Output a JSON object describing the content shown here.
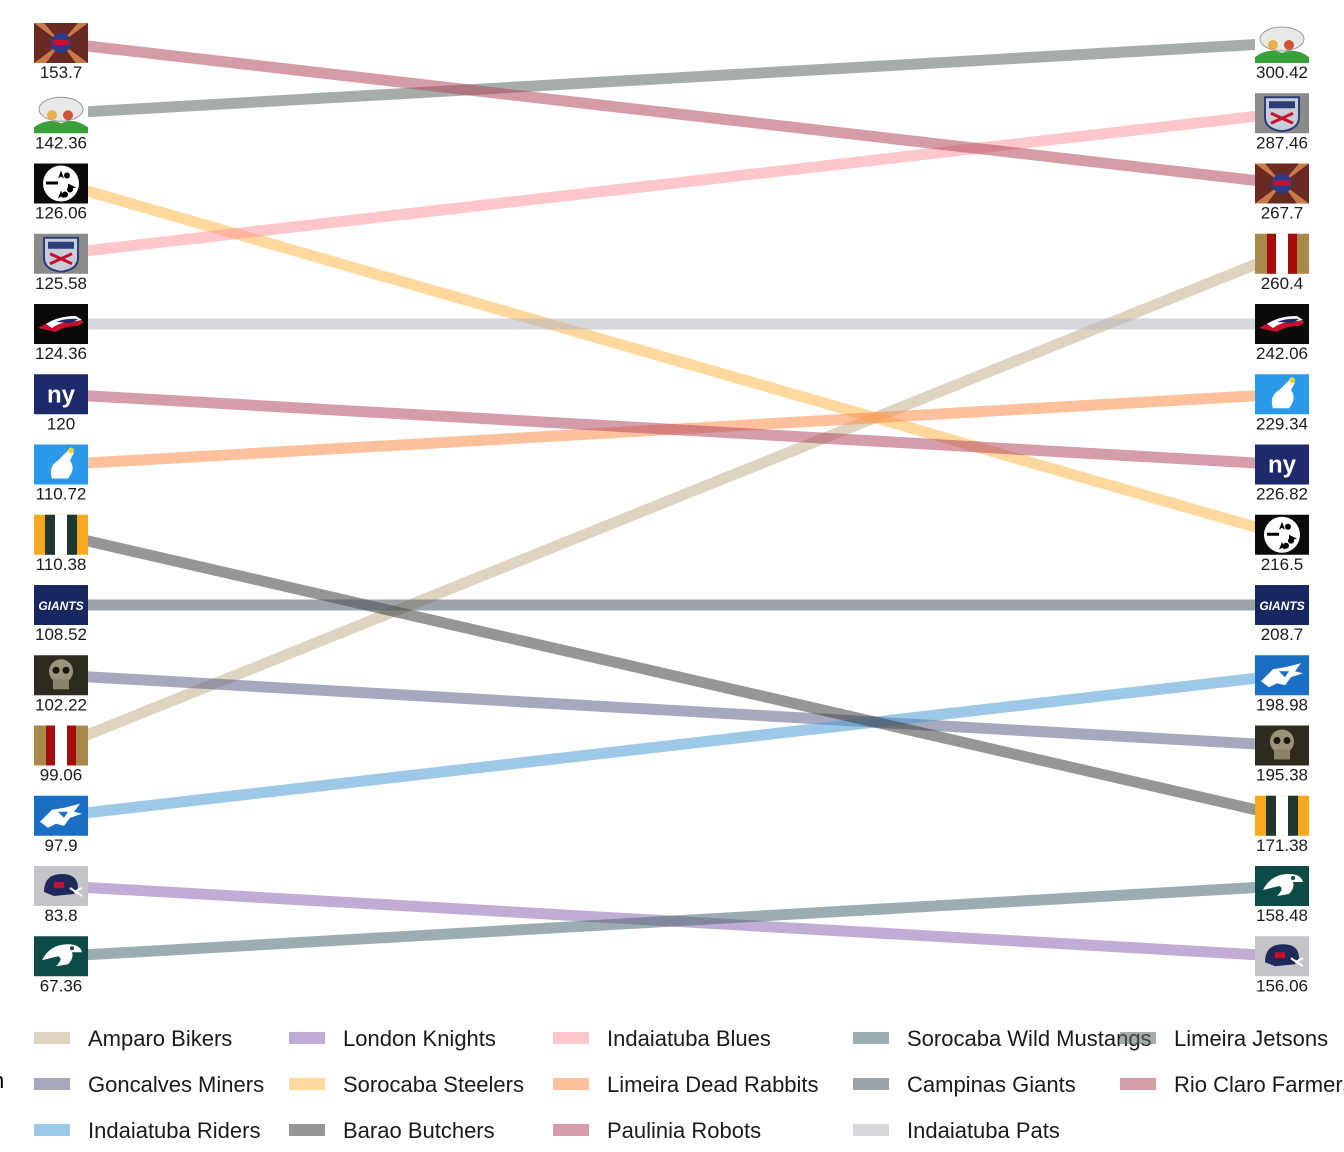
{
  "chart_data": {
    "type": "line",
    "title": "",
    "xlabel": "",
    "ylabel": "",
    "x": [
      "left",
      "right"
    ],
    "legend_placement": "bottom",
    "legend_title": "n",
    "grid": false,
    "series": [
      {
        "name": "Amparo Bikers",
        "color": "#c4b08a",
        "left": {
          "rank": 11,
          "label": "99.06",
          "logo": "pair-stripes-gold-red"
        },
        "right": {
          "rank": 4,
          "label": "260.4",
          "logo": "pair-stripes-gold-red"
        }
      },
      {
        "name": "Goncalves Miners",
        "color": "#5c6188",
        "left": {
          "rank": 10,
          "label": "102.22",
          "logo": "skull-logo"
        },
        "right": {
          "rank": 11,
          "label": "195.38",
          "logo": "skull-logo"
        }
      },
      {
        "name": "Indaiatuba Riders",
        "color": "#4e9bd6",
        "left": {
          "rank": 12,
          "label": "97.9",
          "logo": "blue-panther-logo"
        },
        "right": {
          "rank": 10,
          "label": "198.98",
          "logo": "blue-panther-logo"
        }
      },
      {
        "name": "London Knights",
        "color": "#8e67b2",
        "left": {
          "rank": 13,
          "label": "83.8",
          "logo": "helmet-logo"
        },
        "right": {
          "rank": 14,
          "label": "156.06",
          "logo": "helmet-logo"
        }
      },
      {
        "name": "Sorocaba Steelers",
        "color": "#ffb84d",
        "left": {
          "rank": 3,
          "label": "126.06",
          "logo": "steelers-logo"
        },
        "right": {
          "rank": 8,
          "label": "216.5",
          "logo": "steelers-logo"
        }
      },
      {
        "name": "Barao Butchers",
        "color": "#3f3f3f",
        "left": {
          "rank": 8,
          "label": "110.38",
          "logo": "pair-stripes-green-gold"
        },
        "right": {
          "rank": 12,
          "label": "171.38",
          "logo": "pair-stripes-green-gold"
        }
      },
      {
        "name": "Indaiatuba Blues",
        "color": "#ff97a2",
        "left": {
          "rank": 4,
          "label": "125.58",
          "logo": "shield-logo"
        },
        "right": {
          "rank": 2,
          "label": "287.46",
          "logo": "shield-logo"
        }
      },
      {
        "name": "Limeira Dead Rabbits",
        "color": "#ff8c4a",
        "left": {
          "rank": 7,
          "label": "110.72",
          "logo": "rabbit-logo"
        },
        "right": {
          "rank": 6,
          "label": "229.34",
          "logo": "rabbit-logo"
        }
      },
      {
        "name": "Paulinia Robots",
        "color": "#b24a64",
        "left": {
          "rank": 6,
          "label": "120",
          "logo": "ny-logo"
        },
        "right": {
          "rank": 7,
          "label": "226.82",
          "logo": "ny-logo"
        }
      },
      {
        "name": "Sorocaba Wild Mustangs",
        "color": "#4a6a73",
        "left": {
          "rank": 14,
          "label": "67.36",
          "logo": "eagle-logo"
        },
        "right": {
          "rank": 13,
          "label": "158.48",
          "logo": "eagle-logo"
        }
      },
      {
        "name": "Campinas Giants",
        "color": "#4b5963",
        "left": {
          "rank": 9,
          "label": "108.52",
          "logo": "giants-logo"
        },
        "right": {
          "rank": 9,
          "label": "208.7",
          "logo": "giants-logo"
        }
      },
      {
        "name": "Indaiatuba Pats",
        "color": "#b3b7be",
        "left": {
          "rank": 5,
          "label": "124.36",
          "logo": "patriots-logo"
        },
        "right": {
          "rank": 5,
          "label": "242.06",
          "logo": "patriots-logo"
        }
      },
      {
        "name": "Limeira Jetsons",
        "color": "#5d6a63",
        "left": {
          "rank": 2,
          "label": "142.36",
          "logo": "cartoon-logo"
        },
        "right": {
          "rank": 1,
          "label": "300.42",
          "logo": "cartoon-logo"
        }
      },
      {
        "name": "Rio Claro Farmers",
        "color": "#b3485f",
        "left": {
          "rank": 1,
          "label": "153.7",
          "logo": "starburst-logo"
        },
        "right": {
          "rank": 3,
          "label": "267.7",
          "logo": "starburst-logo"
        }
      }
    ]
  }
}
